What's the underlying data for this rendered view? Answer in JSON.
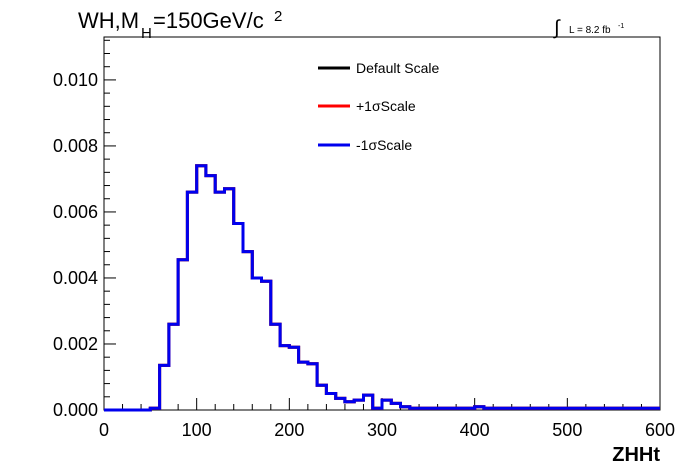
{
  "chart_data": {
    "type": "histogram",
    "title": {
      "text": "WH,M",
      "sub": "H",
      "rest": "=150GeV/c",
      "sup": "2"
    },
    "lumi": {
      "symbol": "∫",
      "text": "L = 8.2 fb",
      "sup": "-1"
    },
    "xlabel": "ZHHt",
    "ylabel": "",
    "xlim": [
      0,
      600
    ],
    "ylim": [
      0,
      0.0113
    ],
    "x_ticks": [
      "0",
      "100",
      "200",
      "300",
      "400",
      "500",
      "600"
    ],
    "y_ticks": [
      "0.000",
      "0.002",
      "0.004",
      "0.006",
      "0.008",
      "0.010"
    ],
    "grid": false,
    "legend_position": "top-center",
    "bin_width": 10,
    "x_start": 0,
    "series": [
      {
        "name": "Default Scale",
        "color": "#000000",
        "values": [
          0,
          0,
          0,
          0,
          0,
          5e-05,
          0.00135,
          0.0026,
          0.00455,
          0.0066,
          0.0074,
          0.0071,
          0.0066,
          0.0067,
          0.00565,
          0.0048,
          0.004,
          0.0039,
          0.0026,
          0.00195,
          0.0019,
          0.00145,
          0.0014,
          0.00075,
          0.0005,
          0.00035,
          0.00025,
          0.0003,
          0.00045,
          5e-05,
          0.0003,
          0.0002,
          0.0001,
          5e-05,
          5e-05,
          5e-05,
          5e-05,
          5e-05,
          5e-05,
          5e-05,
          0.0001,
          5e-05,
          5e-05,
          5e-05,
          5e-05,
          5e-05,
          5e-05,
          5e-05,
          5e-05,
          5e-05,
          5e-05,
          5e-05,
          5e-05,
          5e-05,
          5e-05,
          5e-05,
          5e-05,
          5e-05,
          5e-05,
          5e-05
        ]
      },
      {
        "name": "+1σScale",
        "color": "#ff0000",
        "values": [
          0,
          0,
          0,
          0,
          0,
          5e-05,
          0.00135,
          0.0026,
          0.00455,
          0.0066,
          0.0074,
          0.0071,
          0.0066,
          0.0067,
          0.00565,
          0.0048,
          0.004,
          0.0039,
          0.0026,
          0.00195,
          0.0019,
          0.00145,
          0.0014,
          0.00075,
          0.0005,
          0.00035,
          0.00025,
          0.0003,
          0.00045,
          5e-05,
          0.0003,
          0.0002,
          0.0001,
          5e-05,
          5e-05,
          5e-05,
          5e-05,
          5e-05,
          5e-05,
          5e-05,
          0.0001,
          5e-05,
          5e-05,
          5e-05,
          5e-05,
          5e-05,
          5e-05,
          5e-05,
          5e-05,
          5e-05,
          5e-05,
          5e-05,
          5e-05,
          5e-05,
          5e-05,
          5e-05,
          5e-05,
          5e-05,
          5e-05,
          5e-05
        ]
      },
      {
        "name": "-1σScale",
        "color": "#0000ee",
        "values": [
          0,
          0,
          0,
          0,
          0,
          5e-05,
          0.00135,
          0.0026,
          0.00455,
          0.0066,
          0.0074,
          0.0071,
          0.0066,
          0.0067,
          0.00565,
          0.0048,
          0.004,
          0.0039,
          0.0026,
          0.00195,
          0.0019,
          0.00145,
          0.0014,
          0.00075,
          0.0005,
          0.00035,
          0.00025,
          0.0003,
          0.00045,
          5e-05,
          0.0003,
          0.0002,
          0.0001,
          5e-05,
          5e-05,
          5e-05,
          5e-05,
          5e-05,
          5e-05,
          5e-05,
          0.0001,
          5e-05,
          5e-05,
          5e-05,
          5e-05,
          5e-05,
          5e-05,
          5e-05,
          5e-05,
          5e-05,
          5e-05,
          5e-05,
          5e-05,
          5e-05,
          5e-05,
          5e-05,
          5e-05,
          5e-05,
          5e-05,
          5e-05
        ]
      }
    ]
  }
}
